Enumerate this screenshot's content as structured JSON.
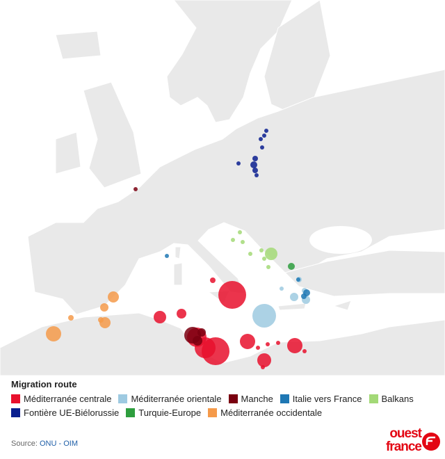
{
  "legend": {
    "title": "Migration route",
    "items": [
      {
        "name": "Méditerranée centrale",
        "color": "#e8112d"
      },
      {
        "name": "Méditerranée orientale",
        "color": "#9ecae1"
      },
      {
        "name": "Manche",
        "color": "#7a0010"
      },
      {
        "name": "Italie vers France",
        "color": "#1f78b4"
      },
      {
        "name": "Balkans",
        "color": "#a3d977"
      },
      {
        "name": "Fontière UE-Biélorussie",
        "color": "#0a1f8f"
      },
      {
        "name": "Turquie-Europe",
        "color": "#2e9e3e"
      },
      {
        "name": "Méditerranée occidentale",
        "color": "#f59a4a"
      }
    ]
  },
  "source": {
    "label": "Source:",
    "link": "ONU - OIM"
  },
  "logo": [
    "ouest",
    "france"
  ]
}
